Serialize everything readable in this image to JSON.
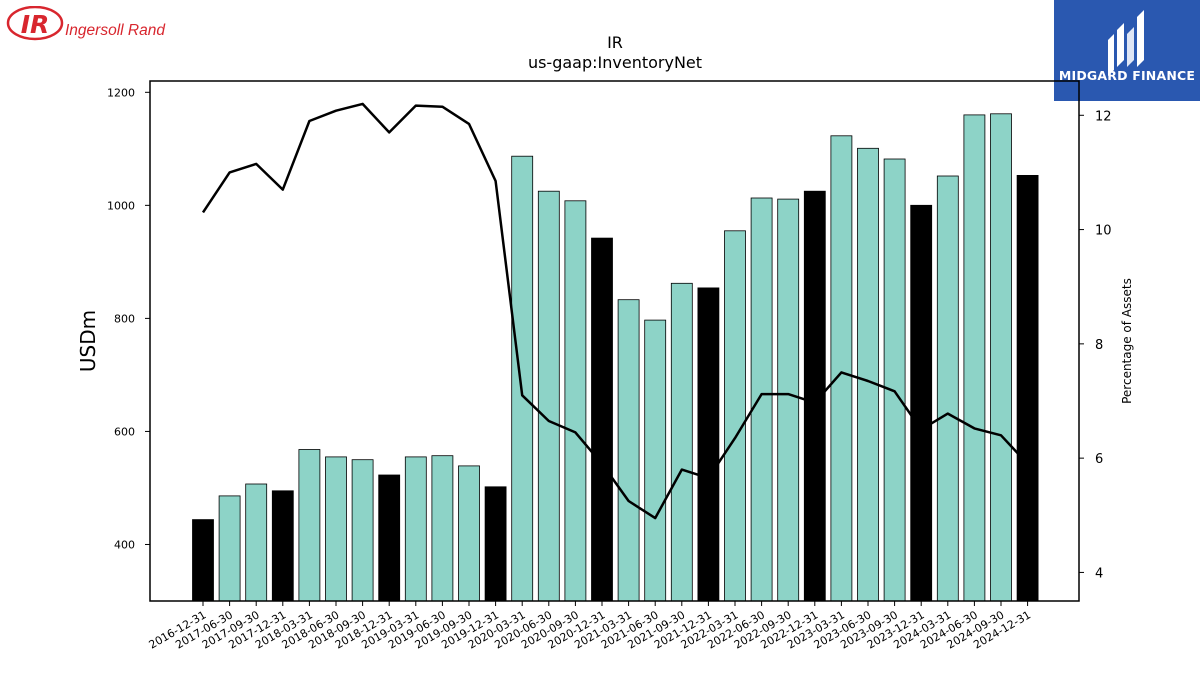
{
  "logo": {
    "monogram": "IR",
    "company_name": "Ingersoll Rand",
    "color": "#d8262e"
  },
  "brand": {
    "name": "MIDGARD FINANCE",
    "color": "#2a58b0"
  },
  "chart_data": {
    "type": "bar",
    "title": "IR",
    "subtitle": "us-gaap:InventoryNet",
    "ylabel": "USDm",
    "y2label": "Percentage of Assets",
    "ylim": [
      300,
      1220
    ],
    "y2lim": [
      3.5,
      12.6
    ],
    "yticks": [
      400,
      600,
      800,
      1000,
      1200
    ],
    "y2ticks": [
      4,
      6,
      8,
      10,
      12
    ],
    "grid": false,
    "bar_colors": {
      "quarter": "#8dd3c7",
      "year_end": "#000000"
    },
    "line_color": "#000000",
    "categories": [
      "2016-12-31",
      "2017-06-30",
      "2017-09-30",
      "2017-12-31",
      "2018-03-31",
      "2018-06-30",
      "2018-09-30",
      "2018-12-31",
      "2019-03-31",
      "2019-06-30",
      "2019-09-30",
      "2019-12-31",
      "2020-03-31",
      "2020-06-30",
      "2020-09-30",
      "2020-12-31",
      "2021-03-31",
      "2021-06-30",
      "2021-09-30",
      "2021-12-31",
      "2022-03-31",
      "2022-06-30",
      "2022-09-30",
      "2022-12-31",
      "2023-03-31",
      "2023-06-30",
      "2023-09-30",
      "2023-12-31",
      "2024-03-31",
      "2024-06-30",
      "2024-09-30",
      "2024-12-31"
    ],
    "series": [
      {
        "kind": "bar",
        "values": [
          444,
          486,
          507,
          495,
          568,
          555,
          550,
          523,
          555,
          557,
          539,
          502,
          1087,
          1025,
          1008,
          942,
          833,
          797,
          862,
          854,
          955,
          1013,
          1011,
          1025,
          1123,
          1101,
          1082,
          1000,
          1052,
          1160,
          1162,
          1053
        ],
        "year_end": [
          true,
          false,
          false,
          true,
          false,
          false,
          false,
          true,
          false,
          false,
          false,
          true,
          false,
          false,
          false,
          true,
          false,
          false,
          false,
          true,
          false,
          false,
          false,
          true,
          false,
          false,
          false,
          true,
          false,
          false,
          false,
          true
        ]
      },
      {
        "kind": "line",
        "axis": "right",
        "values": [
          10.3,
          11.0,
          11.15,
          10.7,
          11.9,
          12.08,
          12.2,
          11.7,
          12.17,
          12.15,
          11.85,
          10.85,
          7.1,
          6.65,
          6.45,
          5.9,
          5.25,
          4.95,
          5.8,
          5.65,
          6.35,
          7.12,
          7.12,
          6.97,
          7.5,
          7.35,
          7.17,
          6.5,
          6.78,
          6.52,
          6.4,
          5.9
        ]
      }
    ]
  }
}
